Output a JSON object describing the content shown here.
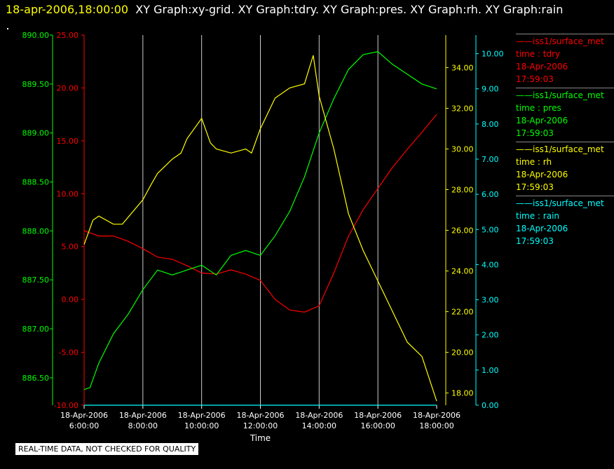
{
  "header": {
    "timestamp": "18-apr-2006,18:00:00",
    "titles": "XY Graph:xy-grid.  XY Graph:tdry.  XY Graph:pres.  XY Graph:rh.  XY Graph:rain"
  },
  "footer": {
    "qc_note": "REAL-TIME DATA, NOT CHECKED FOR QUALITY"
  },
  "colors": {
    "tdry": "#ff0000",
    "pres": "#00ff00",
    "rh": "#ffff00",
    "rain": "#00ffff",
    "grid": "#cccccc"
  },
  "legend": [
    {
      "name": "iss1/surface_met",
      "var": "time : tdry",
      "date": "18-Apr-2006",
      "time": "17:59:03",
      "color": "#ff0000"
    },
    {
      "name": "iss1/surface_met",
      "var": "time : pres",
      "date": "18-Apr-2006",
      "time": "17:59:03",
      "color": "#00ff00"
    },
    {
      "name": "iss1/surface_met",
      "var": "time : rh",
      "date": "18-Apr-2006",
      "time": "17:59:03",
      "color": "#ffff00"
    },
    {
      "name": "iss1/surface_met",
      "var": "time : rain",
      "date": "18-Apr-2006",
      "time": "17:59:03",
      "color": "#00ffff"
    }
  ],
  "chart_data": {
    "type": "line",
    "xlabel": "Time",
    "x_ticks": [
      {
        "hour": 6,
        "date": "18-Apr-2006",
        "time": "6:00:00"
      },
      {
        "hour": 8,
        "date": "18-Apr-2006",
        "time": "8:00:00"
      },
      {
        "hour": 10,
        "date": "18-Apr-2006",
        "time": "10:00:00"
      },
      {
        "hour": 12,
        "date": "18-Apr-2006",
        "time": "12:00:00"
      },
      {
        "hour": 14,
        "date": "18-Apr-2006",
        "time": "14:00:00"
      },
      {
        "hour": 16,
        "date": "18-Apr-2006",
        "time": "16:00:00"
      },
      {
        "hour": 18,
        "date": "18-Apr-2006",
        "time": "18:00:00"
      }
    ],
    "xlim_hours": [
      6,
      18
    ],
    "grid": "vertical",
    "axes": {
      "pres": {
        "range": [
          886.22,
          890.0
        ],
        "ticks": [
          "886.50",
          "887.00",
          "887.50",
          "888.00",
          "888.50",
          "889.00",
          "889.50",
          "890.00"
        ],
        "color": "#00ff00"
      },
      "tdry": {
        "range": [
          -10.0,
          25.0
        ],
        "ticks": [
          "-10.00",
          "-5.00",
          "0.00",
          "5.00",
          "10.00",
          "15.00",
          "20.00",
          "25.00"
        ],
        "color": "#ff0000"
      },
      "rh": {
        "range": [
          17.4,
          35.6
        ],
        "ticks": [
          "18.00",
          "20.00",
          "22.00",
          "24.00",
          "26.00",
          "28.00",
          "30.00",
          "32.00",
          "34.00"
        ],
        "color": "#ffff00"
      },
      "rain": {
        "range": [
          0.0,
          10.53
        ],
        "ticks": [
          "0.00",
          "1.00",
          "2.00",
          "3.00",
          "4.00",
          "5.00",
          "6.00",
          "7.00",
          "8.00",
          "9.00",
          "10.00"
        ],
        "color": "#00ffff"
      }
    },
    "series": [
      {
        "name": "time : tdry",
        "axis": "tdry",
        "x": [
          6.0,
          6.5,
          7.0,
          7.5,
          8.0,
          8.5,
          9.0,
          9.5,
          10.0,
          10.5,
          11.0,
          11.5,
          12.0,
          12.5,
          13.0,
          13.5,
          14.0,
          14.5,
          15.0,
          15.5,
          16.0,
          16.5,
          17.0,
          17.5,
          18.0
        ],
        "y": [
          6.5,
          6.0,
          6.0,
          5.5,
          4.8,
          4.0,
          3.8,
          3.2,
          2.5,
          2.4,
          2.8,
          2.4,
          1.8,
          0.0,
          -1.0,
          -1.2,
          -0.6,
          2.5,
          6.0,
          8.5,
          10.5,
          12.5,
          14.2,
          15.8,
          17.5
        ]
      },
      {
        "name": "time : pres",
        "axis": "pres",
        "x": [
          6.0,
          6.2,
          6.5,
          7.0,
          7.5,
          8.0,
          8.5,
          9.0,
          9.5,
          10.0,
          10.5,
          11.0,
          11.5,
          12.0,
          12.5,
          13.0,
          13.5,
          14.0,
          14.5,
          15.0,
          15.5,
          16.0,
          16.5,
          17.0,
          17.5,
          18.0
        ],
        "y": [
          886.38,
          886.4,
          886.65,
          886.95,
          887.15,
          887.4,
          887.6,
          887.55,
          887.6,
          887.65,
          887.55,
          887.75,
          887.8,
          887.75,
          887.95,
          888.2,
          888.55,
          889.0,
          889.35,
          889.65,
          889.8,
          889.83,
          889.7,
          889.6,
          889.5,
          889.45
        ]
      },
      {
        "name": "time : rh",
        "axis": "rh",
        "x": [
          6.0,
          6.3,
          6.5,
          7.0,
          7.3,
          8.0,
          8.3,
          8.5,
          9.0,
          9.3,
          9.5,
          10.0,
          10.3,
          10.5,
          11.0,
          11.5,
          11.7,
          12.0,
          12.5,
          13.0,
          13.5,
          13.8,
          14.0,
          14.5,
          15.0,
          15.5,
          16.0,
          16.5,
          17.0,
          17.5,
          18.0
        ],
        "y": [
          25.3,
          26.5,
          26.7,
          26.3,
          26.3,
          27.5,
          28.3,
          28.8,
          29.5,
          29.8,
          30.5,
          31.5,
          30.3,
          30.0,
          29.8,
          30.0,
          29.8,
          31.0,
          32.5,
          33.0,
          33.2,
          34.6,
          32.6,
          30.0,
          26.8,
          25.0,
          23.5,
          22.0,
          20.5,
          19.8,
          17.6
        ]
      },
      {
        "name": "time : rain",
        "axis": "rain",
        "x": [
          6.0,
          18.0
        ],
        "y": [
          0.0,
          0.0
        ]
      }
    ]
  }
}
